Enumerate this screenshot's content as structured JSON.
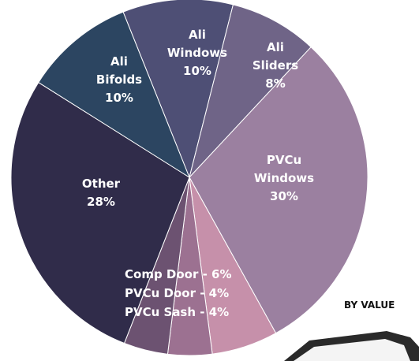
{
  "chart_data": {
    "type": "pie",
    "subtitle": "BY VALUE",
    "categories": [
      "Ali Windows",
      "Ali Sliders",
      "PVCu Windows",
      null,
      null,
      null,
      "Other",
      "Ali Bifolds"
    ],
    "values": [
      10,
      8,
      30,
      6,
      4,
      4,
      28,
      10
    ],
    "value_labels": [
      "10%",
      "8%",
      "30%",
      "Comp Door - 6%",
      "PVCu Door - 4%",
      "PVCu Sash - 4%",
      "28%",
      "10%"
    ],
    "colors": [
      "#4e4f75",
      "#6f6487",
      "#9b80a0",
      "#c690aa",
      "#9c7191",
      "#6c5271",
      "#302c4a",
      "#2c4561"
    ]
  }
}
